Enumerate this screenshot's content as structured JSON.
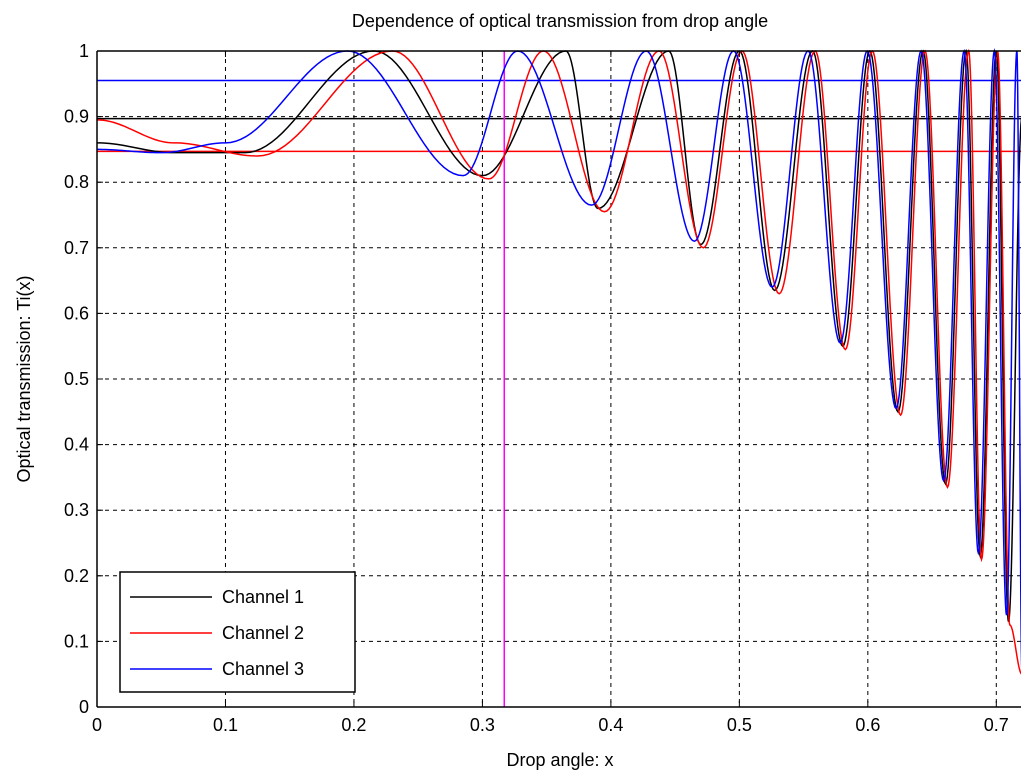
{
  "chart_data": {
    "type": "line",
    "title": "Dependence of optical transmission from drop angle",
    "xlabel": "Drop angle: x",
    "ylabel": "Optical transmission: Ti(x)",
    "xlim": [
      0,
      0.72
    ],
    "ylim": [
      0,
      1
    ],
    "xticks": [
      0,
      0.1,
      0.2,
      0.3,
      0.4,
      0.5,
      0.6,
      0.7
    ],
    "xtick_labels": [
      "0",
      "0.1",
      "0.2",
      "0.3",
      "0.4",
      "0.5",
      "0.6",
      "0.7"
    ],
    "yticks": [
      0,
      0.1,
      0.2,
      0.3,
      0.4,
      0.5,
      0.6,
      0.7,
      0.8,
      0.9,
      1
    ],
    "ytick_labels": [
      "0",
      "0.1",
      "0.2",
      "0.3",
      "0.4",
      "0.5",
      "0.6",
      "0.7",
      "0.8",
      "0.9",
      "1"
    ],
    "grid": true,
    "legend_position": "bottom-left",
    "series": [
      {
        "name": "Channel 1",
        "color": "#000000",
        "x": [
          0,
          0.06,
          0.115,
          0.2155,
          0.3,
          0.365,
          0.39,
          0.445,
          0.47,
          0.5,
          0.5275,
          0.557,
          0.5805,
          0.6015,
          0.6235,
          0.643,
          0.6605,
          0.6765,
          0.6875,
          0.7,
          0.7095,
          0.72
        ],
        "y": [
          0.86,
          0.845,
          0.845,
          1.0,
          0.81,
          1.0,
          0.76,
          1.0,
          0.705,
          1.0,
          0.635,
          1.0,
          0.55,
          1.0,
          0.45,
          1.0,
          0.34,
          1.0,
          0.23,
          1.0,
          0.13,
          0.9
        ]
      },
      {
        "name": "Channel 2",
        "color": "#ff0000",
        "x": [
          0,
          0.06,
          0.125,
          0.23,
          0.305,
          0.3475,
          0.395,
          0.4375,
          0.472,
          0.502,
          0.531,
          0.559,
          0.5825,
          0.6035,
          0.6255,
          0.6445,
          0.662,
          0.6785,
          0.6885,
          0.701,
          0.7105,
          0.72
        ],
        "y": [
          0.895,
          0.86,
          0.84,
          1.0,
          0.805,
          1.0,
          0.755,
          1.0,
          0.7,
          1.0,
          0.63,
          1.0,
          0.545,
          1.0,
          0.445,
          1.0,
          0.335,
          1.0,
          0.225,
          1.0,
          0.125,
          0.05
        ]
      },
      {
        "name": "Channel 3",
        "color": "#0000ff",
        "x": [
          0,
          0.05,
          0.1,
          0.195,
          0.285,
          0.3275,
          0.385,
          0.4275,
          0.465,
          0.4955,
          0.5255,
          0.5535,
          0.5785,
          0.5995,
          0.622,
          0.6415,
          0.659,
          0.675,
          0.686,
          0.6985,
          0.708,
          0.716,
          0.72
        ],
        "y": [
          0.85,
          0.845,
          0.86,
          1.0,
          0.81,
          1.0,
          0.765,
          1.0,
          0.71,
          1.0,
          0.64,
          1.0,
          0.555,
          1.0,
          0.455,
          1.0,
          0.345,
          1.0,
          0.235,
          1.0,
          0.14,
          1.0,
          0.05
        ]
      }
    ],
    "reference_lines": [
      {
        "orientation": "horizontal",
        "value": 0.955,
        "color": "#0000ff"
      },
      {
        "orientation": "horizontal",
        "value": 0.897,
        "color": "#000000"
      },
      {
        "orientation": "horizontal",
        "value": 0.847,
        "color": "#ff0000"
      },
      {
        "orientation": "vertical",
        "value": 0.317,
        "color": "#ff00ff"
      }
    ]
  }
}
